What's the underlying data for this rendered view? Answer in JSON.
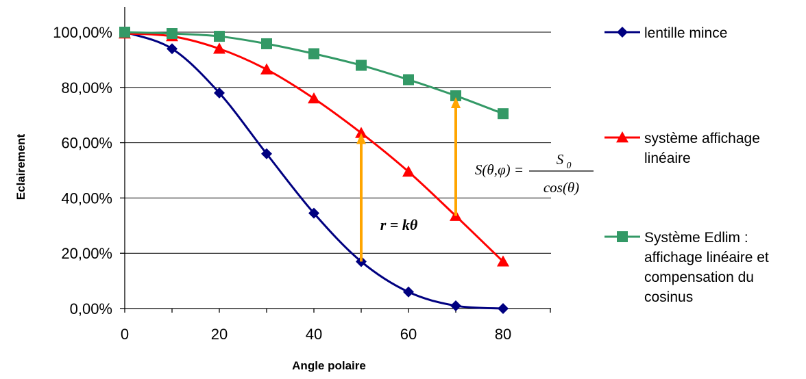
{
  "chart_data": {
    "type": "line",
    "xlabel": "Angle polaire",
    "ylabel": "Eclairement",
    "xlim": [
      0,
      90
    ],
    "ylim": [
      0,
      1
    ],
    "x_ticks": [
      0,
      20,
      40,
      60,
      80
    ],
    "x_tick_labels": [
      "0",
      "20",
      "40",
      "60",
      "80"
    ],
    "y_ticks": [
      0,
      0.2,
      0.4,
      0.6,
      0.8,
      1.0
    ],
    "y_tick_labels": [
      "0,00%",
      "20,00%",
      "40,00%",
      "60,00%",
      "80,00%",
      "100,00%"
    ],
    "grid": "horizontal",
    "legend_position": "right",
    "series": [
      {
        "name": "lentille mince",
        "legend_lines": [
          "lentille mince"
        ],
        "color": "#000080",
        "marker": "diamond",
        "x": [
          0,
          10,
          20,
          30,
          40,
          50,
          60,
          70,
          80
        ],
        "values": [
          1.0,
          0.94,
          0.78,
          0.56,
          0.345,
          0.17,
          0.06,
          0.01,
          0.0
        ]
      },
      {
        "name": "système affichage linéaire",
        "legend_lines": [
          "système affichage",
          "linéaire"
        ],
        "color": "#ff0000",
        "marker": "triangle",
        "x": [
          0,
          10,
          20,
          30,
          40,
          50,
          60,
          70,
          80
        ],
        "values": [
          0.995,
          0.985,
          0.94,
          0.865,
          0.76,
          0.635,
          0.495,
          0.335,
          0.17
        ]
      },
      {
        "name": "Système Edlim : affichage linéaire et compensation du cosinus",
        "legend_lines": [
          "Système Edlim :",
          "affichage linéaire et",
          "compensation du",
          "cosinus"
        ],
        "color": "#339966",
        "marker": "square",
        "x": [
          0,
          10,
          20,
          30,
          40,
          50,
          60,
          70,
          80
        ],
        "values": [
          1.0,
          0.995,
          0.985,
          0.958,
          0.922,
          0.88,
          0.828,
          0.77,
          0.705
        ]
      }
    ],
    "annotations": {
      "arrow_color": "#ffa500",
      "arrows": [
        {
          "x": 50,
          "from": 0.17,
          "to": 0.62
        },
        {
          "x": 70,
          "from": 0.335,
          "to": 0.75
        }
      ],
      "r_formula": "r = kθ",
      "s_formula": {
        "lhs": "S(θ,φ) =",
        "numerator": "S",
        "numerator_sub": "0",
        "denominator": "cos(θ)"
      }
    }
  }
}
